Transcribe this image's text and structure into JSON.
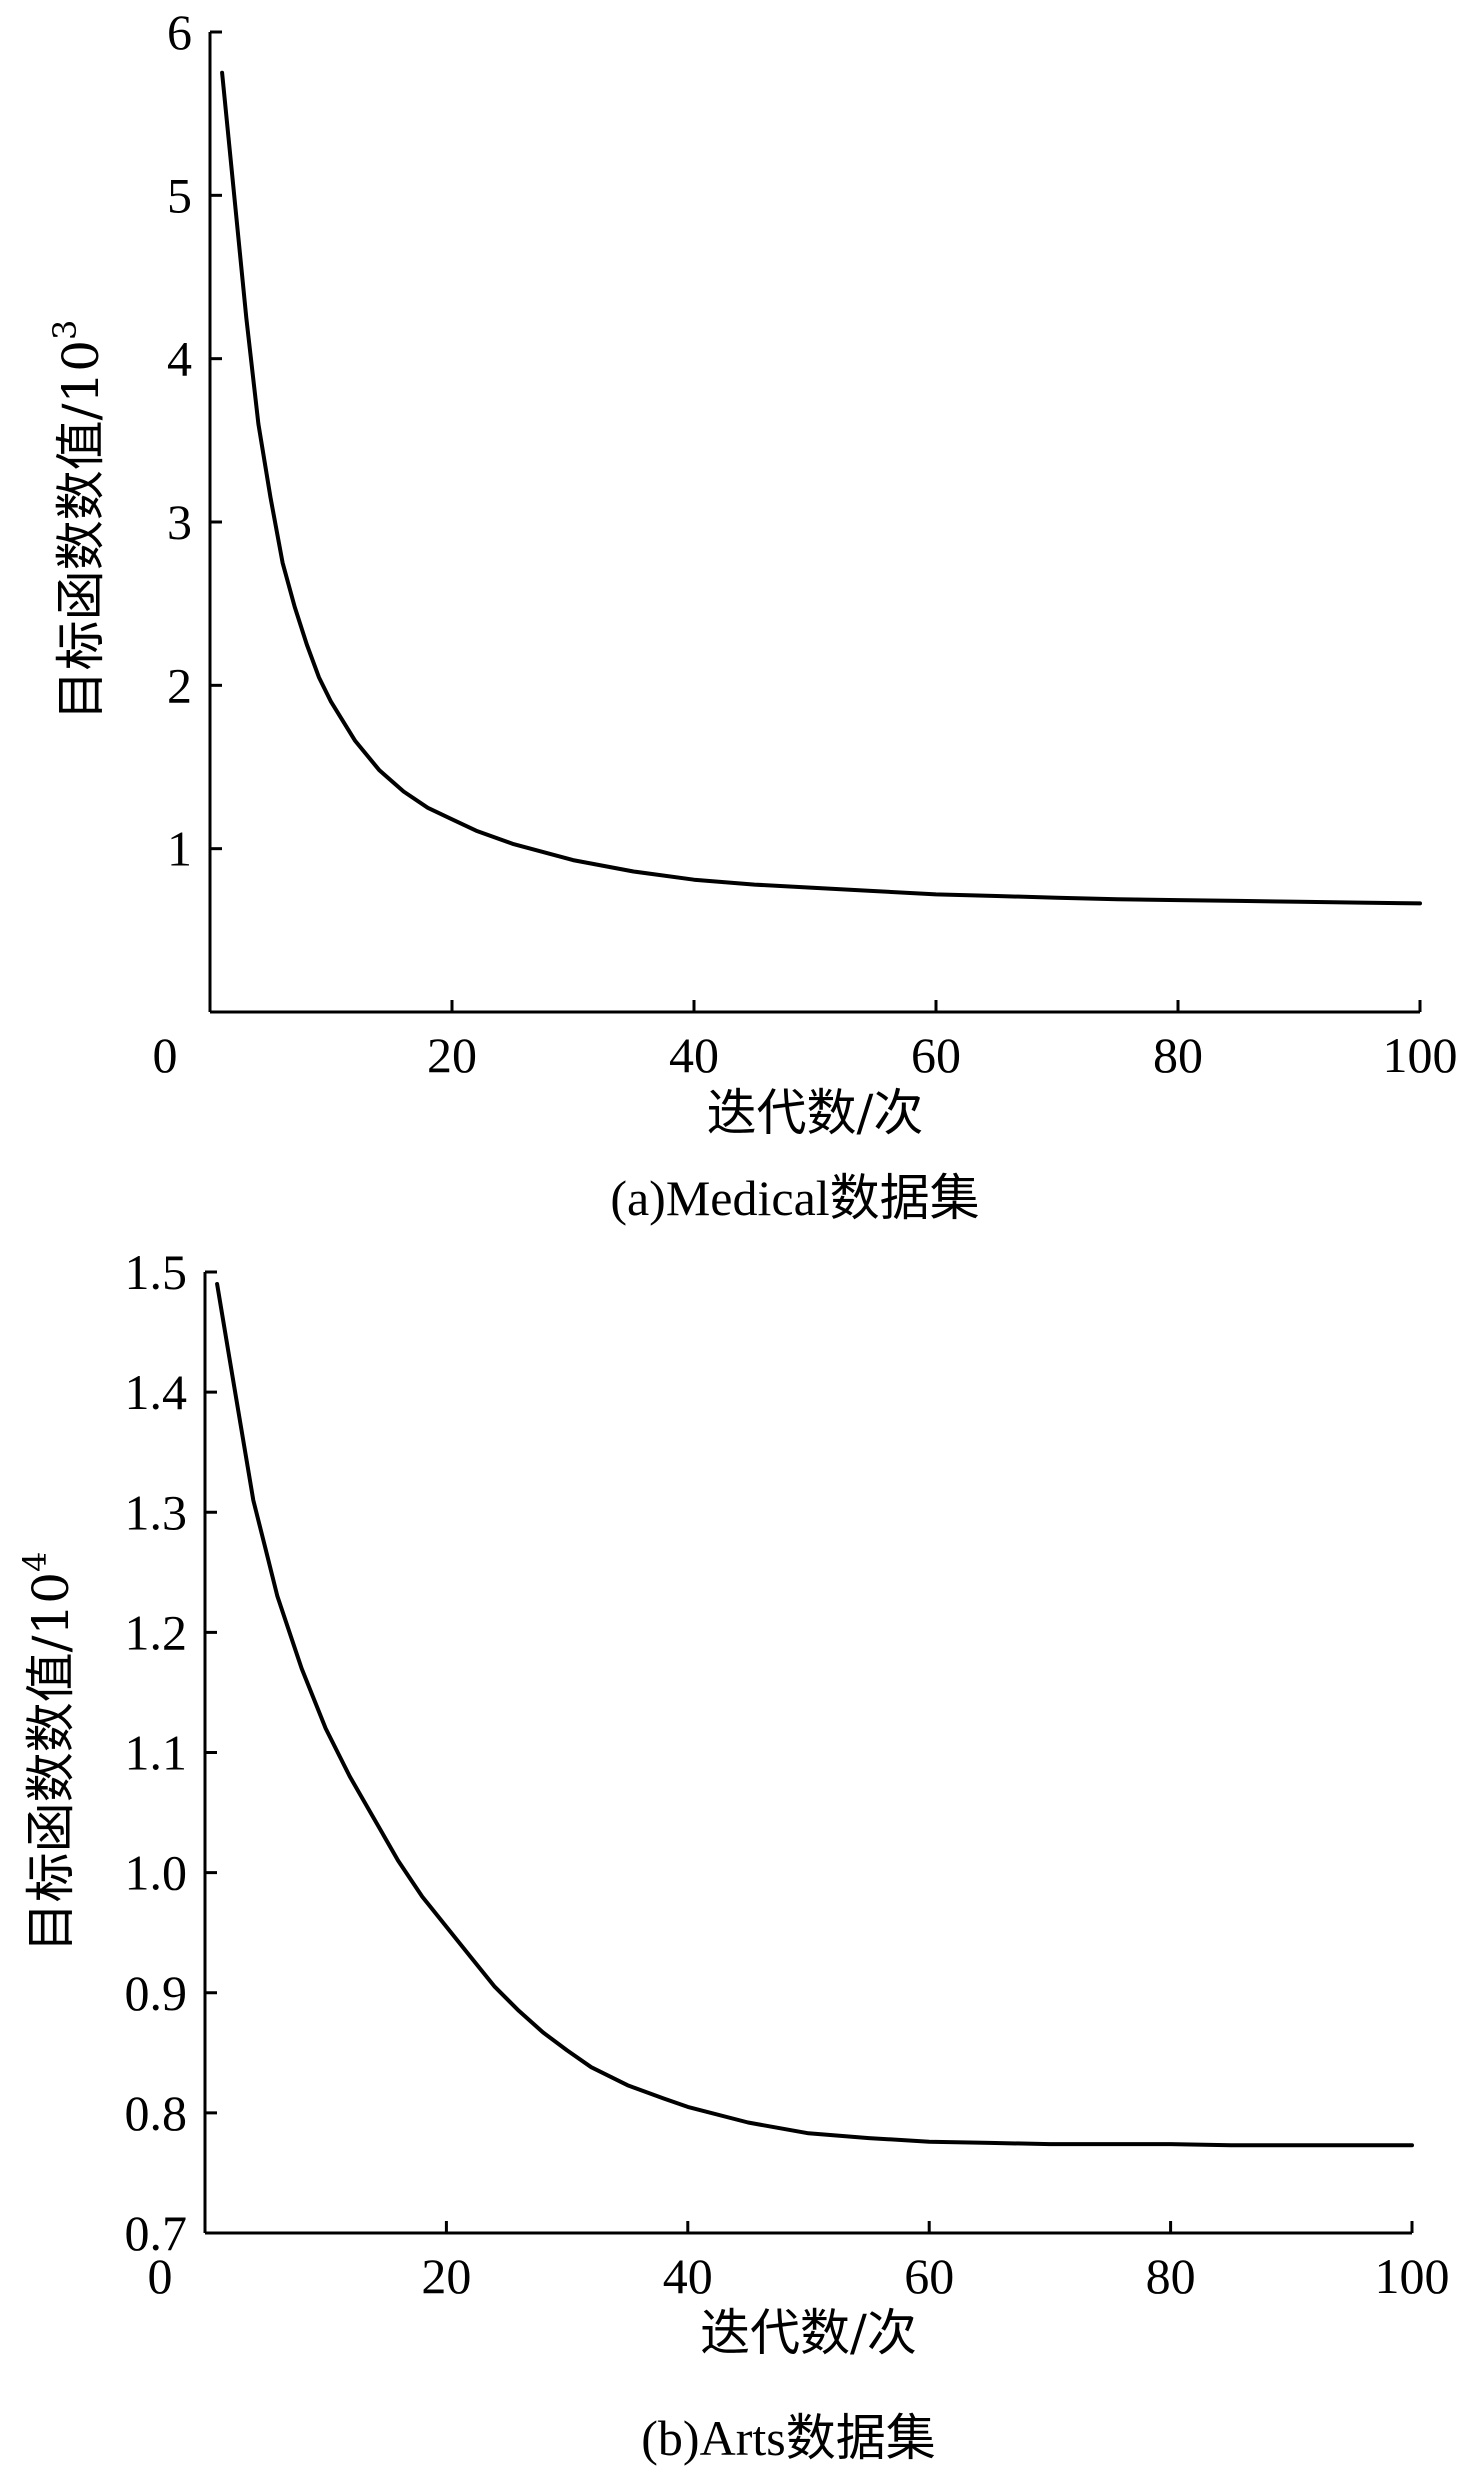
{
  "chart_data": [
    {
      "type": "line",
      "caption": "(a)Medical数据集",
      "xlabel": "迭代数/次",
      "ylabel": "目标函数数值/10",
      "ylabel_sup": "3",
      "xlim": [
        0,
        100
      ],
      "ylim": [
        0,
        6
      ],
      "xticks": [
        "0",
        "20",
        "40",
        "60",
        "80",
        "100"
      ],
      "yticks": [
        "1",
        "2",
        "3",
        "4",
        "5",
        "6"
      ],
      "x": [
        1,
        2,
        3,
        4,
        5,
        6,
        7,
        8,
        9,
        10,
        12,
        14,
        16,
        18,
        20,
        22,
        25,
        30,
        35,
        40,
        45,
        50,
        55,
        60,
        65,
        70,
        75,
        80,
        85,
        90,
        95,
        100
      ],
      "y": [
        5.75,
        5.0,
        4.25,
        3.6,
        3.15,
        2.75,
        2.48,
        2.25,
        2.05,
        1.9,
        1.66,
        1.48,
        1.35,
        1.25,
        1.18,
        1.11,
        1.03,
        0.93,
        0.86,
        0.81,
        0.78,
        0.76,
        0.74,
        0.72,
        0.71,
        0.7,
        0.69,
        0.685,
        0.68,
        0.675,
        0.67,
        0.665
      ]
    },
    {
      "type": "line",
      "caption": "(b)Arts数据集",
      "xlabel": "迭代数/次",
      "ylabel": "目标函数数值/10",
      "ylabel_sup": "4",
      "xlim": [
        0,
        100
      ],
      "ylim": [
        0.7,
        1.5
      ],
      "xticks": [
        "0",
        "20",
        "40",
        "60",
        "80",
        "100"
      ],
      "yticks": [
        "0.7",
        "0.8",
        "0.9",
        "1.0",
        "1.1",
        "1.2",
        "1.3",
        "1.4",
        "1.5"
      ],
      "x": [
        1,
        2,
        3,
        4,
        5,
        6,
        8,
        10,
        12,
        14,
        16,
        18,
        20,
        22,
        24,
        26,
        28,
        30,
        32,
        35,
        38,
        40,
        45,
        50,
        55,
        60,
        65,
        70,
        75,
        80,
        85,
        90,
        95,
        100
      ],
      "y": [
        1.49,
        1.43,
        1.37,
        1.31,
        1.27,
        1.23,
        1.17,
        1.12,
        1.08,
        1.045,
        1.01,
        0.98,
        0.955,
        0.93,
        0.905,
        0.885,
        0.867,
        0.852,
        0.838,
        0.823,
        0.812,
        0.805,
        0.792,
        0.783,
        0.779,
        0.776,
        0.775,
        0.774,
        0.774,
        0.774,
        0.773,
        0.773,
        0.773,
        0.773
      ]
    }
  ]
}
